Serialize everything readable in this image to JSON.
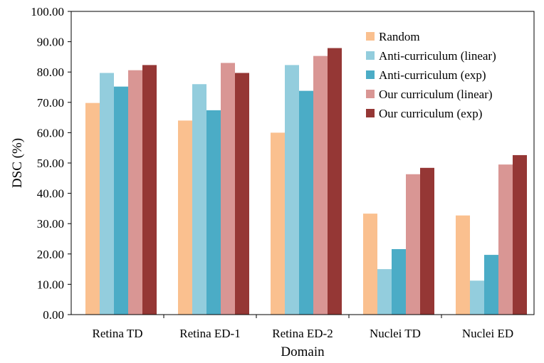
{
  "chart_data": {
    "type": "bar",
    "title": "",
    "xlabel": "Domain",
    "ylabel": "DSC (%)",
    "ylim": [
      0,
      100
    ],
    "yticks": [
      "0.00",
      "10.00",
      "20.00",
      "30.00",
      "40.00",
      "50.00",
      "60.00",
      "70.00",
      "80.00",
      "90.00",
      "100.00"
    ],
    "categories": [
      "Retina TD",
      "Retina ED-1",
      "Retina ED-2",
      "Nuclei TD",
      "Nuclei ED"
    ],
    "series": [
      {
        "name": "Random",
        "color": "#FAC08F",
        "values": [
          69.8,
          64.0,
          60.0,
          33.3,
          32.7
        ]
      },
      {
        "name": "Anti-curriculum (linear)",
        "color": "#93CDDD",
        "values": [
          79.7,
          76.0,
          82.3,
          15.0,
          11.2
        ]
      },
      {
        "name": "Anti-curriculum (exp)",
        "color": "#4BACC6",
        "values": [
          75.2,
          67.4,
          73.8,
          21.6,
          19.7
        ]
      },
      {
        "name": "Our curriculum (linear)",
        "color": "#D99694",
        "values": [
          80.6,
          83.0,
          85.3,
          46.3,
          49.5
        ]
      },
      {
        "name": "Our curriculum (exp)",
        "color": "#953735",
        "values": [
          82.3,
          79.7,
          87.9,
          48.4,
          52.6
        ]
      }
    ],
    "legend": "top-right",
    "grid": false
  }
}
